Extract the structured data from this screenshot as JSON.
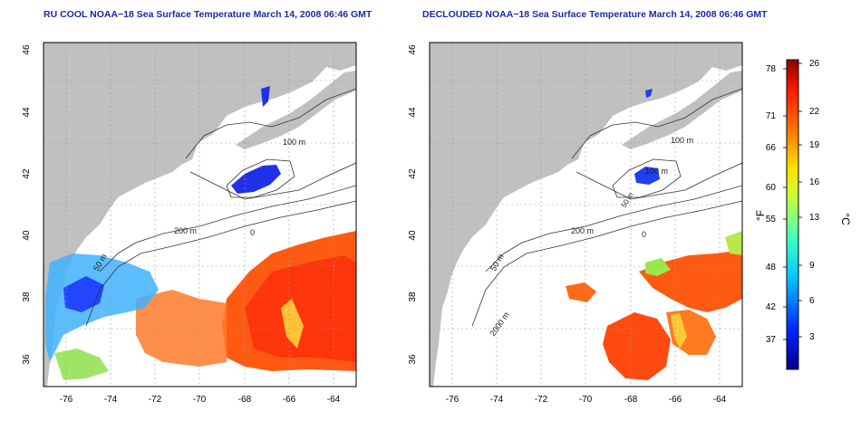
{
  "panels": [
    {
      "title": "RU COOL NOAA−18 Sea Surface Temperature March 14, 2008 06:46 GMT",
      "x_ticks": [
        "-76",
        "-74",
        "-72",
        "-70",
        "-68",
        "-66",
        "-64"
      ],
      "y_ticks": [
        "36",
        "38",
        "40",
        "42",
        "44",
        "46"
      ],
      "contour_labels": [
        "100 m",
        "200 m",
        "50 m",
        "0"
      ]
    },
    {
      "title": "DECLOUDED NOAA−18 Sea Surface Temperature March 14, 2008 06:46 GMT",
      "x_ticks": [
        "-76",
        "-74",
        "-72",
        "-70",
        "-68",
        "-66",
        "-64"
      ],
      "y_ticks": [
        "36",
        "38",
        "40",
        "42",
        "44",
        "46"
      ],
      "contour_labels": [
        "100 m",
        "200 m",
        "50 m",
        "100 m",
        "50 m",
        "2000 m",
        "0"
      ]
    }
  ],
  "colorbar": {
    "f_label": "°F",
    "c_label": "°C",
    "f_ticks": [
      "78",
      "71",
      "66",
      "60",
      "55",
      "48",
      "42",
      "37"
    ],
    "c_ticks": [
      "26",
      "22",
      "19",
      "16",
      "13",
      "9",
      "6",
      "3"
    ]
  },
  "colors": {
    "land": "#c0c0c0",
    "ocean": "#ffffff",
    "title": "#1a2aa8",
    "grid": "#9a9a9a"
  }
}
